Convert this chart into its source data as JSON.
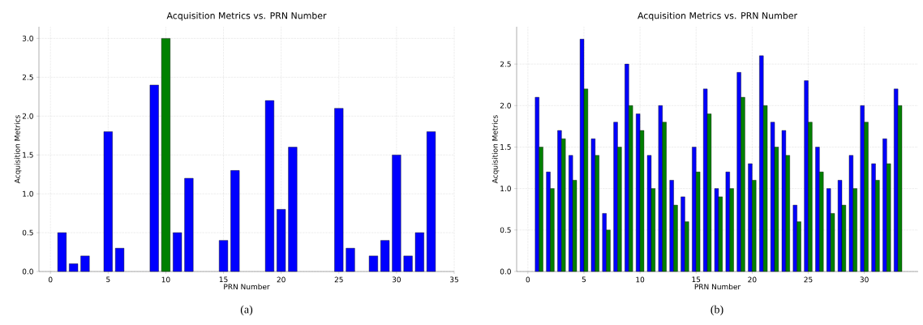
{
  "chart_data": [
    {
      "type": "bar",
      "title": "Acquisition Metrics vs. PRN Number",
      "xlabel": "PRN Number",
      "ylabel": "Acquisition Metrics",
      "x": [
        1,
        2,
        3,
        5,
        6,
        9,
        10,
        11,
        12,
        15,
        16,
        19,
        20,
        21,
        25,
        26,
        28,
        29,
        30,
        31,
        32,
        33
      ],
      "values": [
        0.5,
        0.1,
        0.2,
        1.8,
        0.3,
        2.4,
        3.0,
        0.5,
        1.2,
        0.4,
        1.3,
        2.2,
        0.8,
        1.6,
        2.1,
        0.3,
        0.2,
        0.4,
        1.5,
        0.2,
        0.5,
        1.8
      ],
      "colors": [
        "#0000ff",
        "#0000ff",
        "#0000ff",
        "#0000ff",
        "#0000ff",
        "#0000ff",
        "#008000",
        "#0000ff",
        "#0000ff",
        "#0000ff",
        "#0000ff",
        "#0000ff",
        "#0000ff",
        "#0000ff",
        "#0000ff",
        "#0000ff",
        "#0000ff",
        "#0000ff",
        "#0000ff",
        "#0000ff",
        "#0000ff",
        "#0000ff"
      ],
      "xlim": [
        -1,
        35
      ],
      "xticks": [
        0,
        5,
        10,
        15,
        20,
        25,
        30,
        35
      ],
      "ylim": [
        0,
        3.15
      ],
      "yticks": [
        {
          "value": 0,
          "label": "0.0"
        },
        0.5,
        {
          "value": 1,
          "label": "1.0"
        },
        1.5,
        {
          "value": 2,
          "label": "2.0"
        },
        2.5,
        {
          "value": 3,
          "label": "3.0"
        }
      ],
      "grid": true,
      "annotations": [
        "(a)"
      ]
    },
    {
      "type": "bar",
      "title": "Acquisition Metrics vs. PRN Number",
      "xlabel": "PRN Number",
      "ylabel": "Acquisition Metrics",
      "x": [
        1,
        2,
        3,
        4,
        5,
        6,
        7,
        8,
        9,
        10,
        11,
        12,
        13,
        14,
        15,
        16,
        17,
        18,
        19,
        20,
        21,
        22,
        23,
        24,
        25,
        26,
        27,
        28,
        29,
        30,
        31,
        32,
        33
      ],
      "series": [
        {
          "color": "#0000ff",
          "values": [
            2.1,
            1.2,
            1.7,
            1.4,
            2.8,
            1.6,
            0.7,
            1.8,
            2.5,
            1.9,
            1.4,
            2.0,
            1.1,
            0.9,
            1.5,
            2.2,
            1.0,
            1.2,
            2.4,
            1.3,
            2.6,
            1.8,
            1.7,
            0.8,
            2.3,
            1.5,
            1.0,
            1.1,
            1.4,
            2.0,
            1.3,
            1.6,
            2.2
          ]
        },
        {
          "color": "#008000",
          "values": [
            1.5,
            1.0,
            1.6,
            1.1,
            2.2,
            1.4,
            0.5,
            1.5,
            2.0,
            1.7,
            1.0,
            1.8,
            0.8,
            0.6,
            1.2,
            1.9,
            0.9,
            1.0,
            2.1,
            1.1,
            2.0,
            1.5,
            1.4,
            0.6,
            1.8,
            1.2,
            0.7,
            0.8,
            1.0,
            1.8,
            1.1,
            1.3,
            2.0
          ]
        }
      ],
      "xlim": [
        -1,
        34.8
      ],
      "xticks": [
        0,
        5,
        10,
        15,
        20,
        25,
        30
      ],
      "ylim": [
        0,
        2.95
      ],
      "yticks": [
        {
          "value": 0,
          "label": "0.0"
        },
        0.5,
        {
          "value": 1,
          "label": "1.0"
        },
        1.5,
        {
          "value": 2,
          "label": "2.0"
        },
        2.5
      ],
      "grid": true,
      "annotations": [
        "(b)"
      ]
    }
  ]
}
